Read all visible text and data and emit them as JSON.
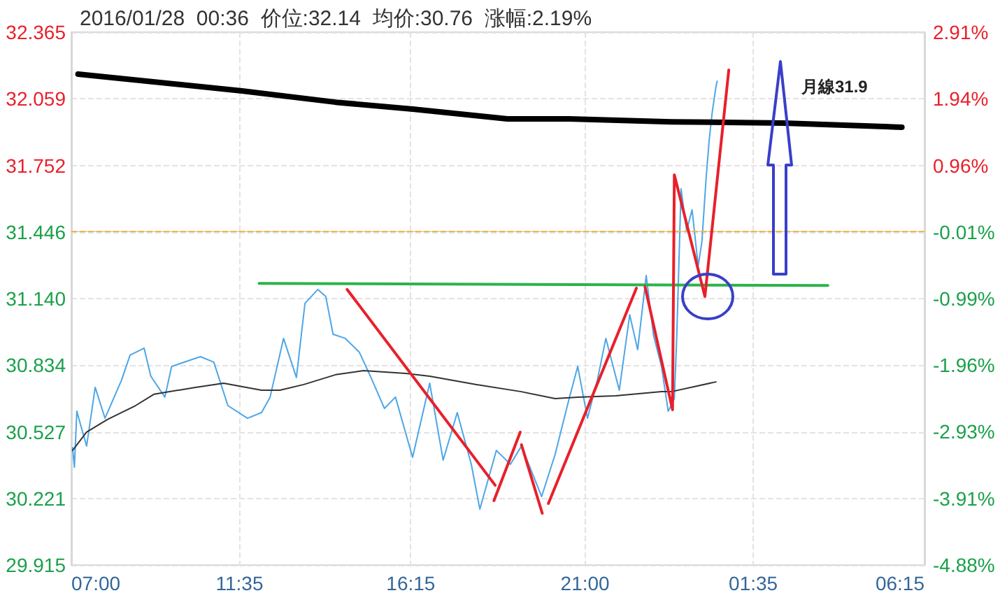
{
  "chart_data": {
    "type": "line",
    "title": "2016/01/28  00:36  价位:32.14  均价:30.76  涨幅:2.19%",
    "xlim": [
      "2016-01-27T07:00",
      "2016-01-28T06:15"
    ],
    "xticks": [
      {
        "value": "2016-01-27T07:00",
        "label": "07:00"
      },
      {
        "value": "2016-01-27T11:35",
        "label": "11:35"
      },
      {
        "value": "2016-01-27T16:15",
        "label": "16:15"
      },
      {
        "value": "2016-01-27T21:00",
        "label": "21:00"
      },
      {
        "value": "2016-01-28T01:35",
        "label": "01:35"
      },
      {
        "value": "2016-01-28T06:15",
        "label": "06:15"
      }
    ],
    "ylim": [
      29.915,
      32.365
    ],
    "yticks": [
      29.915,
      30.221,
      30.527,
      30.834,
      {
        "value": 31.14,
        "label": "31.140"
      },
      31.446,
      31.752,
      32.059,
      32.365
    ],
    "y2lim": [
      -4.88,
      2.91
    ],
    "y2ticks": [
      {
        "value": -4.88,
        "label": "-4.88%"
      },
      {
        "value": -3.91,
        "label": "-3.91%"
      },
      {
        "value": -2.93,
        "label": "-2.93%"
      },
      {
        "value": -1.96,
        "label": "-1.96%"
      },
      {
        "value": -0.99,
        "label": "-0.99%"
      },
      {
        "value": -0.01,
        "label": "-0.01%"
      },
      {
        "value": 0.96,
        "label": "0.96%"
      },
      {
        "value": 1.94,
        "label": "1.94%"
      },
      {
        "value": 2.91,
        "label": "2.91%"
      }
    ],
    "grid": true,
    "marker": "none",
    "ref_lines": [
      {
        "axis": "y",
        "value": 31.446,
        "color": "#f5b642",
        "line_style": "dashed"
      }
    ],
    "annotations": [
      "月線31.9"
    ],
    "series": [
      {
        "color": "#4da6e8",
        "x": [
          "2016-01-27T07:02",
          "2016-01-27T07:05",
          "2016-01-27T07:09",
          "2016-01-27T07:14",
          "2016-01-27T07:25",
          "2016-01-27T07:39",
          "2016-01-27T07:55",
          "2016-01-27T08:22",
          "2016-01-27T08:36",
          "2016-01-27T08:59",
          "2016-01-27T09:10",
          "2016-01-27T09:33",
          "2016-01-27T09:44",
          "2016-01-27T10:31",
          "2016-01-27T10:53",
          "2016-01-27T11:16",
          "2016-01-27T11:48",
          "2016-01-27T12:11",
          "2016-01-27T12:25",
          "2016-01-27T12:47",
          "2016-01-27T13:08",
          "2016-01-27T13:22",
          "2016-01-27T13:43",
          "2016-01-27T13:56",
          "2016-01-27T14:08",
          "2016-01-27T14:28",
          "2016-01-27T14:51",
          "2016-01-27T15:10",
          "2016-01-27T15:32",
          "2016-01-27T15:50",
          "2016-01-27T16:18",
          "2016-01-27T16:46",
          "2016-01-27T17:08",
          "2016-01-27T17:31",
          "2016-01-27T17:54",
          "2016-01-27T18:08",
          "2016-01-27T18:35",
          "2016-01-27T18:58",
          "2016-01-27T19:16",
          "2016-01-27T19:49",
          "2016-01-27T20:11",
          "2016-01-27T20:34",
          "2016-01-27T20:48",
          "2016-01-27T21:04",
          "2016-01-27T21:20",
          "2016-01-27T21:34",
          "2016-01-27T21:56",
          "2016-01-27T22:13",
          "2016-01-27T22:26",
          "2016-01-27T22:40",
          "2016-01-27T22:52",
          "2016-01-27T23:05",
          "2016-01-27T23:16",
          "2016-01-27T23:26",
          "2016-01-27T23:30",
          "2016-01-27T23:37",
          "2016-01-27T23:46",
          "2016-01-27T23:55",
          "2016-01-28T00:05",
          "2016-01-28T00:11",
          "2016-01-28T00:18",
          "2016-01-28T00:23",
          "2016-01-28T00:28",
          "2016-01-28T00:34",
          "2016-01-28T00:36"
        ],
        "values": [
          30.455,
          30.365,
          30.622,
          30.571,
          30.462,
          30.732,
          30.59,
          30.764,
          30.88,
          30.912,
          30.783,
          30.687,
          30.828,
          30.873,
          30.848,
          30.648,
          30.59,
          30.616,
          30.687,
          30.957,
          30.777,
          31.118,
          31.182,
          31.15,
          30.976,
          30.957,
          30.893,
          30.777,
          30.635,
          30.687,
          30.41,
          30.751,
          30.397,
          30.616,
          30.378,
          30.172,
          30.442,
          30.378,
          30.462,
          30.23,
          30.423,
          30.68,
          30.828,
          30.59,
          30.764,
          30.957,
          30.719,
          31.066,
          30.905,
          31.246,
          30.97,
          30.828,
          30.622,
          30.68,
          30.97,
          31.645,
          31.452,
          31.548,
          31.291,
          31.4,
          31.696,
          31.87,
          31.998,
          32.114,
          32.14
        ]
      },
      {
        "color": "#333333",
        "x": [
          "2016-01-27T07:02",
          "2016-01-27T07:25",
          "2016-01-27T07:59",
          "2016-01-27T08:45",
          "2016-01-27T09:15",
          "2016-01-27T10:23",
          "2016-01-27T11:09",
          "2016-01-27T12:11",
          "2016-01-27T12:41",
          "2016-01-27T13:20",
          "2016-01-27T14:12",
          "2016-01-27T14:58",
          "2016-01-27T16:07",
          "2016-01-27T16:46",
          "2016-01-27T18:01",
          "2016-01-27T19:16",
          "2016-01-27T20:11",
          "2016-01-27T20:48",
          "2016-01-27T21:50",
          "2016-01-27T23:05",
          "2016-01-27T23:21",
          "2016-01-28T00:34"
        ],
        "values": [
          30.442,
          30.526,
          30.584,
          30.648,
          30.7,
          30.732,
          30.751,
          30.719,
          30.719,
          30.745,
          30.79,
          30.809,
          30.796,
          30.783,
          30.745,
          30.712,
          30.68,
          30.687,
          30.693,
          30.712,
          30.712,
          30.757
        ]
      },
      {
        "color": "#000000",
        "x": [
          "2016-01-27T07:11",
          "2016-01-27T11:39",
          "2016-01-27T14:12",
          "2016-01-27T16:18",
          "2016-01-27T18:53",
          "2016-01-27T20:34",
          "2016-01-27T23:21",
          "2016-01-28T02:24",
          "2016-01-28T05:38"
        ],
        "values": [
          32.172,
          32.095,
          32.043,
          32.011,
          31.966,
          31.966,
          31.953,
          31.947,
          31.928
        ]
      },
      {
        "color": "#2db34a",
        "x": [
          "2016-01-27T12:07",
          "2016-01-28T03:37"
        ],
        "values": [
          31.21,
          31.2
        ]
      },
      {
        "color": "#e8202a",
        "x": [
          "2016-01-27T14:31",
          "2016-01-27T18:33"
        ],
        "values": [
          31.182,
          30.282
        ]
      },
      {
        "color": "#e8202a",
        "x": [
          "2016-01-27T18:31",
          "2016-01-27T19:14"
        ],
        "values": [
          30.211,
          30.526
        ]
      },
      {
        "color": "#e8202a",
        "x": [
          "2016-01-27T19:16",
          "2016-01-27T19:50"
        ],
        "values": [
          30.468,
          30.153
        ]
      },
      {
        "color": "#e8202a",
        "x": [
          "2016-01-27T20:00",
          "2016-01-27T22:24"
        ],
        "values": [
          30.198,
          31.188
        ]
      },
      {
        "color": "#e8202a",
        "x": [
          "2016-01-27T22:38",
          "2016-01-27T23:23",
          "2016-01-27T23:26",
          "2016-01-28T00:16",
          "2016-01-28T00:55"
        ],
        "values": [
          31.195,
          30.629,
          31.709,
          31.15,
          32.191
        ]
      }
    ]
  }
}
